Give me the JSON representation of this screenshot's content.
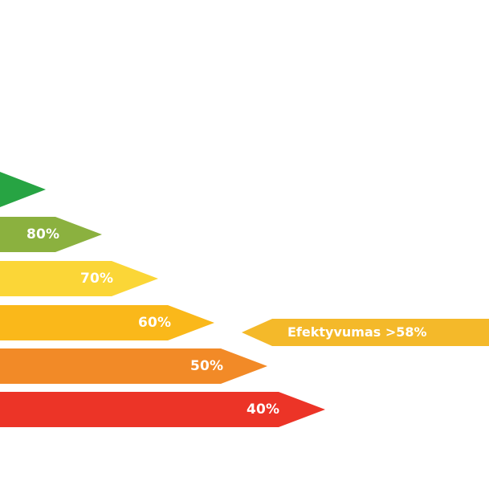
{
  "efficiency_scale": {
    "bars": [
      {
        "label": "",
        "color": "#27a443"
      },
      {
        "label": "80%",
        "color": "#8bb13f"
      },
      {
        "label": "70%",
        "color": "#fbd637"
      },
      {
        "label": "60%",
        "color": "#fab81a"
      },
      {
        "label": "50%",
        "color": "#f28a27"
      },
      {
        "label": "40%",
        "color": "#ec3427"
      }
    ],
    "indicator": {
      "label": "Efektyvumas >58%",
      "color": "#f4b92a"
    }
  }
}
